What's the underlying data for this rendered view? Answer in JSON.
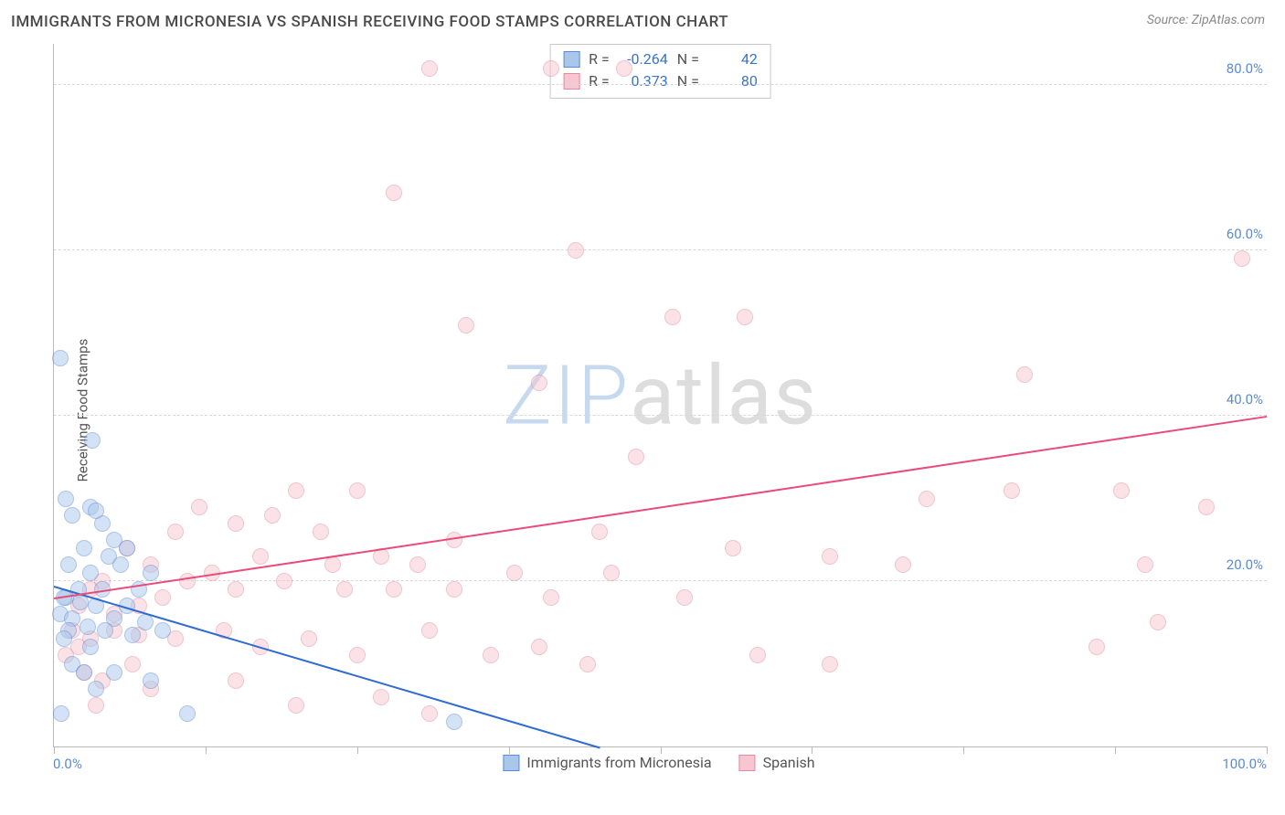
{
  "title": "IMMIGRANTS FROM MICRONESIA VS SPANISH RECEIVING FOOD STAMPS CORRELATION CHART",
  "source": "Source: ZipAtlas.com",
  "watermark": {
    "z": "ZIP",
    "rest": "atlas"
  },
  "chart": {
    "type": "scatter",
    "xlim": [
      0,
      100
    ],
    "ylim": [
      0,
      85
    ],
    "y_ticks": [
      20,
      40,
      60,
      80
    ],
    "y_tick_labels": [
      "20.0%",
      "40.0%",
      "60.0%",
      "80.0%"
    ],
    "x_tick_positions": [
      0,
      12.5,
      25,
      37.5,
      50,
      62.5,
      75,
      87.5,
      100
    ],
    "x_min_label": "0.0%",
    "x_max_label": "100.0%",
    "ylabel": "Receiving Food Stamps",
    "grid_color": "#d9d9d9",
    "axis_color": "#b9b9b9",
    "tick_label_color": "#5b8bd4",
    "background_color": "#ffffff",
    "marker_radius": 9,
    "marker_opacity": 0.5,
    "trend_line_width": 2
  },
  "series": {
    "blue": {
      "label": "Immigrants from Micronesia",
      "fill": "#a9c7ea",
      "stroke": "#5b8bd4",
      "trend_color": "#2f6bd0",
      "R": "-0.264",
      "N": "42",
      "trend": {
        "x1": 0,
        "y1": 19.5,
        "x2": 45,
        "y2": 0
      },
      "points": [
        [
          0.5,
          47
        ],
        [
          3.2,
          37
        ],
        [
          1,
          30
        ],
        [
          3,
          29
        ],
        [
          1.5,
          28
        ],
        [
          4,
          27
        ],
        [
          3.5,
          28.5
        ],
        [
          2.5,
          24
        ],
        [
          5,
          25
        ],
        [
          4.5,
          23
        ],
        [
          1.2,
          22
        ],
        [
          6,
          24
        ],
        [
          5.5,
          22
        ],
        [
          3,
          21
        ],
        [
          1,
          18
        ],
        [
          2,
          19
        ],
        [
          0.8,
          18
        ],
        [
          4,
          19
        ],
        [
          8,
          21
        ],
        [
          7,
          19
        ],
        [
          3.5,
          17
        ],
        [
          0.5,
          16
        ],
        [
          2.2,
          17.5
        ],
        [
          1.5,
          15.5
        ],
        [
          6,
          17
        ],
        [
          5,
          15.5
        ],
        [
          1.2,
          14
        ],
        [
          2.8,
          14.5
        ],
        [
          0.8,
          13
        ],
        [
          4.2,
          14
        ],
        [
          7.5,
          15
        ],
        [
          9,
          14
        ],
        [
          3,
          12
        ],
        [
          6.5,
          13.5
        ],
        [
          1.5,
          10
        ],
        [
          2.5,
          9
        ],
        [
          5,
          9
        ],
        [
          3.5,
          7
        ],
        [
          8,
          8
        ],
        [
          0.6,
          4
        ],
        [
          11,
          4
        ],
        [
          33,
          3
        ]
      ]
    },
    "pink": {
      "label": "Spanish",
      "fill": "#f7c6d0",
      "stroke": "#e28aa0",
      "trend_color": "#e94b7a",
      "R": "0.373",
      "N": "80",
      "trend": {
        "x1": 0,
        "y1": 18,
        "x2": 100,
        "y2": 40
      },
      "points": [
        [
          31,
          82
        ],
        [
          41,
          82
        ],
        [
          47,
          82
        ],
        [
          98,
          59
        ],
        [
          28,
          67
        ],
        [
          43,
          60
        ],
        [
          80,
          45
        ],
        [
          51,
          52
        ],
        [
          57,
          52
        ],
        [
          34,
          51
        ],
        [
          40,
          44
        ],
        [
          48,
          35
        ],
        [
          72,
          30
        ],
        [
          88,
          31
        ],
        [
          79,
          31
        ],
        [
          56,
          24
        ],
        [
          64,
          23
        ],
        [
          95,
          29
        ],
        [
          45,
          26
        ],
        [
          33,
          25
        ],
        [
          27,
          23
        ],
        [
          22,
          26
        ],
        [
          18,
          28
        ],
        [
          15,
          27
        ],
        [
          12,
          29
        ],
        [
          20,
          31
        ],
        [
          25,
          31
        ],
        [
          17,
          23
        ],
        [
          23,
          22
        ],
        [
          30,
          22
        ],
        [
          10,
          26
        ],
        [
          8,
          22
        ],
        [
          11,
          20
        ],
        [
          6,
          24
        ],
        [
          4,
          20
        ],
        [
          3,
          19
        ],
        [
          2,
          17
        ],
        [
          5,
          16
        ],
        [
          7,
          17
        ],
        [
          9,
          18
        ],
        [
          13,
          21
        ],
        [
          15,
          19
        ],
        [
          19,
          20
        ],
        [
          24,
          19
        ],
        [
          28,
          19
        ],
        [
          33,
          19
        ],
        [
          38,
          21
        ],
        [
          41,
          18
        ],
        [
          46,
          21
        ],
        [
          5,
          14
        ],
        [
          7,
          13.5
        ],
        [
          3,
          13
        ],
        [
          2,
          12
        ],
        [
          1.5,
          14
        ],
        [
          10,
          13
        ],
        [
          14,
          14
        ],
        [
          17,
          12
        ],
        [
          21,
          13
        ],
        [
          25,
          11
        ],
        [
          31,
          14
        ],
        [
          36,
          11
        ],
        [
          40,
          12
        ],
        [
          44,
          10
        ],
        [
          52,
          18
        ],
        [
          58,
          11
        ],
        [
          64,
          10
        ],
        [
          70,
          22
        ],
        [
          86,
          12
        ],
        [
          90,
          22
        ],
        [
          91,
          15
        ],
        [
          4,
          8
        ],
        [
          8,
          7
        ],
        [
          15,
          8
        ],
        [
          20,
          5
        ],
        [
          27,
          6
        ],
        [
          31,
          4
        ],
        [
          3.5,
          5
        ],
        [
          1,
          11
        ],
        [
          2.5,
          9
        ],
        [
          6.5,
          10
        ]
      ]
    }
  },
  "stats_legend": {
    "r_label": "R =",
    "n_label": "N ="
  }
}
